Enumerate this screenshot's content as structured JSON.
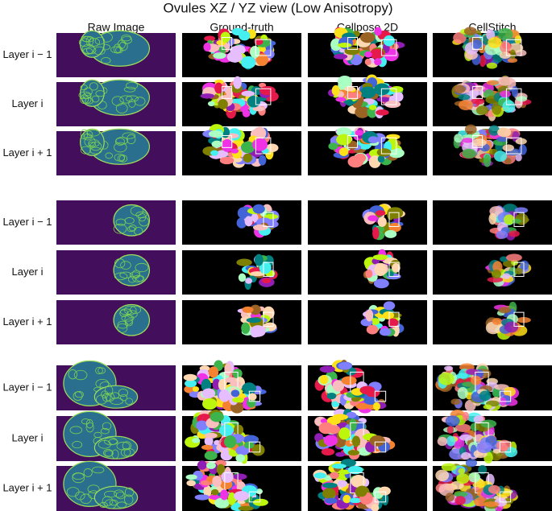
{
  "title": "Ovules  XZ / YZ view (Low Anisotropy)",
  "columns": [
    "Raw Image",
    "Ground-truth",
    "Cellpose 2D",
    "CellStitch"
  ],
  "groups": [
    {
      "rows": [
        "Layer i − 1",
        "Layer i",
        "Layer i + 1"
      ]
    },
    {
      "rows": [
        "Layer i − 1",
        "Layer i",
        "Layer i + 1"
      ]
    },
    {
      "rows": [
        "Layer i − 1",
        "Layer i",
        "Layer i + 1"
      ]
    }
  ]
}
